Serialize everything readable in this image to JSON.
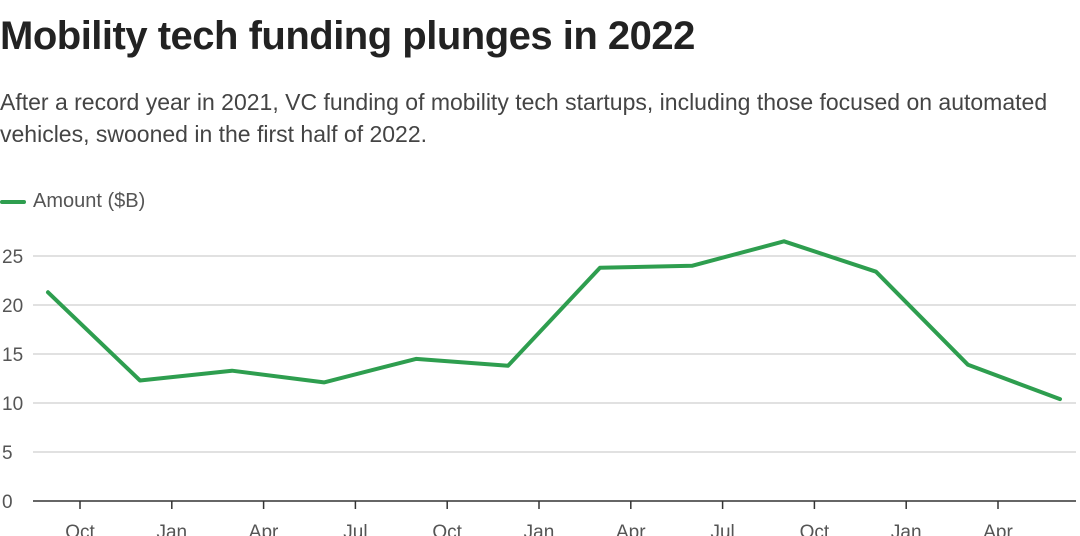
{
  "chart_data": {
    "type": "line",
    "title": "Mobility tech funding plunges in 2022",
    "subtitle": "After a record year in 2021, VC funding of mobility tech startups, including those focused on automated vehicles, swooned in the first half of 2022.",
    "xlabel": "",
    "ylabel": "",
    "ylim": [
      0,
      25
    ],
    "yticks": [
      0,
      5,
      10,
      15,
      20,
      25
    ],
    "grid": true,
    "legend_position": "top-left",
    "x_tick_labels": [
      "Oct",
      "Jan",
      "Apr",
      "Jul",
      "Oct",
      "Jan",
      "Apr",
      "Jul",
      "Oct",
      "Jan",
      "Apr"
    ],
    "series": [
      {
        "name": "Amount ($B)",
        "color": "#2e9e4f",
        "values": [
          21.3,
          12.3,
          13.3,
          12.1,
          14.5,
          13.8,
          23.8,
          24.0,
          26.5,
          23.4,
          13.9,
          10.4
        ]
      }
    ]
  }
}
